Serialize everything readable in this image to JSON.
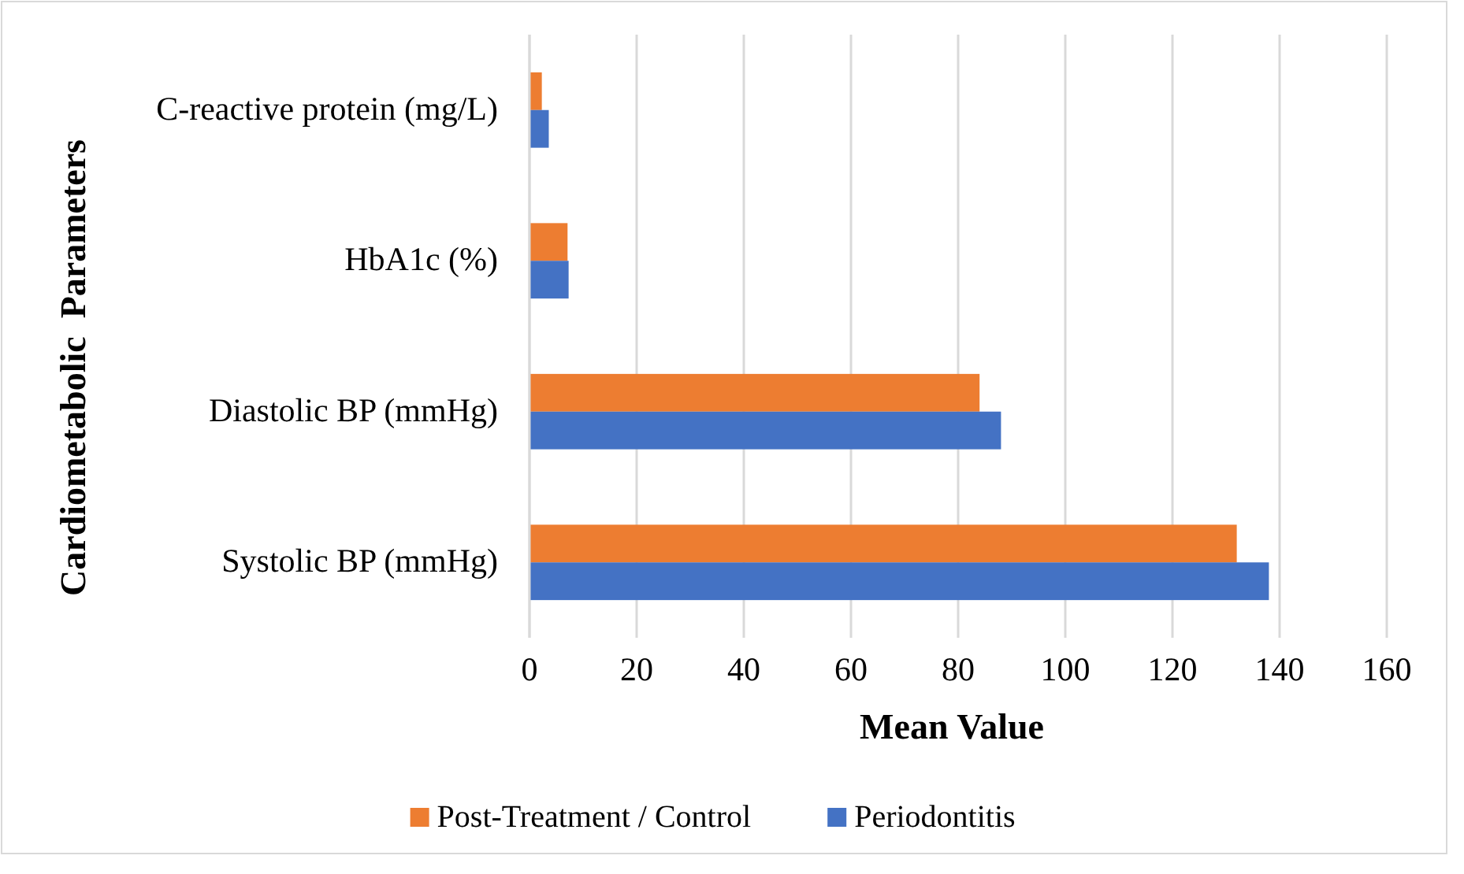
{
  "chart_data": {
    "type": "bar",
    "orientation": "horizontal",
    "xlabel": "Mean Value",
    "ylabel": "Cardiometabolic  Parameters",
    "categories": [
      "C-reactive protein (mg/L)",
      "HbA1c (%)",
      "Diastolic BP (mmHg)",
      "Systolic BP (mmHg)"
    ],
    "series": [
      {
        "name": "Post-Treatment / Control",
        "color": "#ed7d31",
        "values": [
          2.3,
          7.1,
          84,
          132
        ]
      },
      {
        "name": "Periodontitis",
        "color": "#4472c4",
        "values": [
          3.6,
          7.3,
          88,
          138
        ]
      }
    ],
    "xlim": [
      0,
      160
    ],
    "xticks": [
      0,
      20,
      40,
      60,
      80,
      100,
      120,
      140,
      160
    ],
    "grid": "x",
    "legend": "bottom"
  }
}
